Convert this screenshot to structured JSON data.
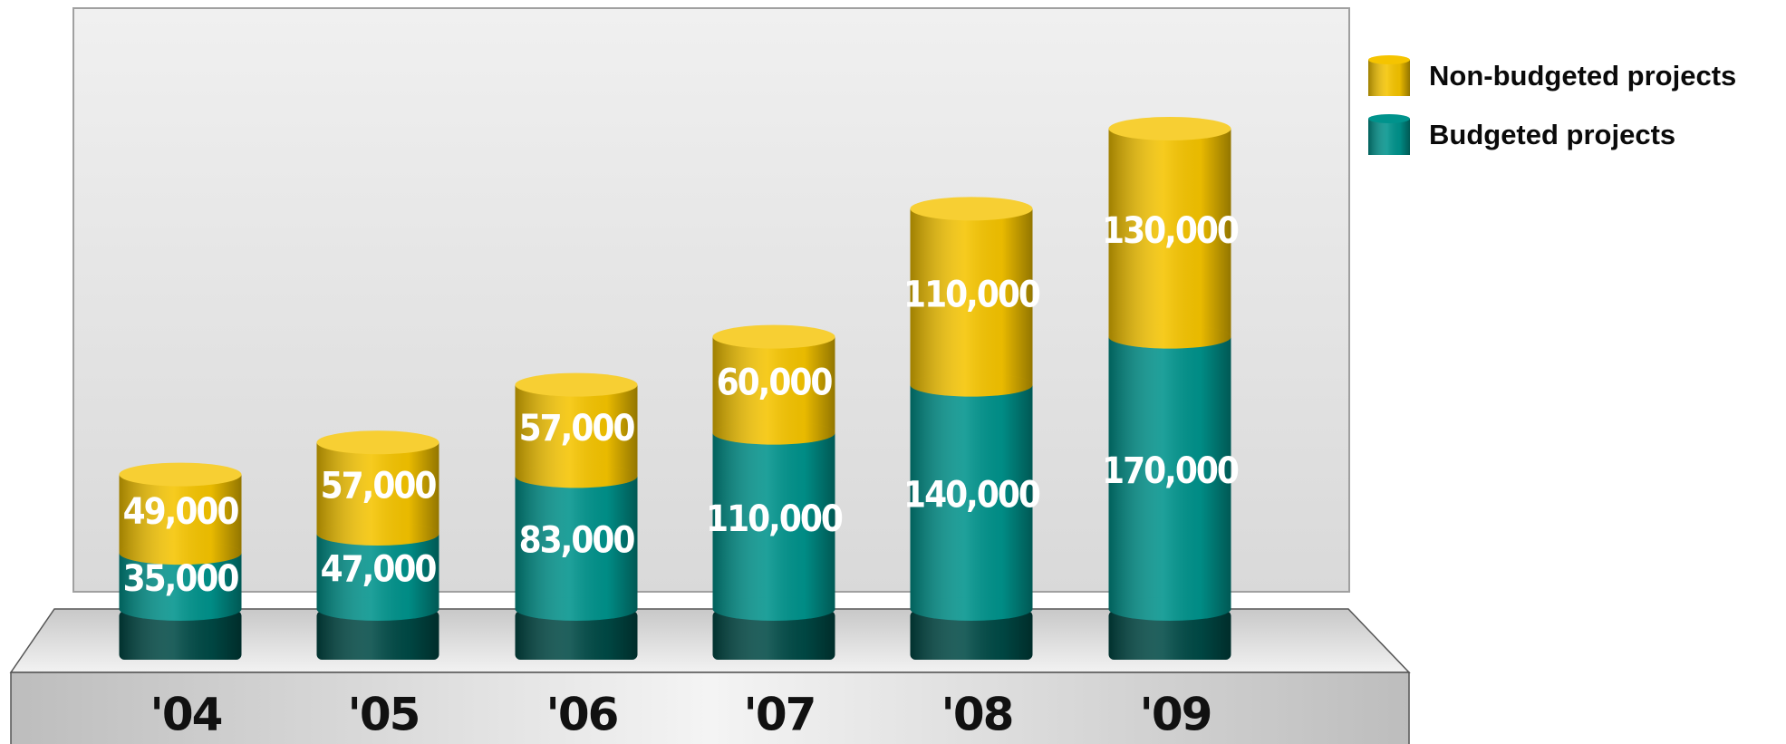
{
  "chart_data": {
    "type": "bar",
    "stacked": true,
    "categories": [
      "'04",
      "'05",
      "'06",
      "'07",
      "'08",
      "'09"
    ],
    "series": [
      {
        "name": "Budgeted projects",
        "color": "#00938c",
        "values": [
          35000,
          47000,
          83000,
          110000,
          140000,
          170000
        ],
        "value_labels": [
          "35,000",
          "47,000",
          "83,000",
          "110,000",
          "140,000",
          "170,000"
        ]
      },
      {
        "name": "Non-budgeted projects",
        "color": "#f5c400",
        "values": [
          49000,
          57000,
          57000,
          60000,
          110000,
          130000
        ],
        "value_labels": [
          "49,000",
          "57,000",
          "57,000",
          "60,000",
          "110,000",
          "130,000"
        ]
      }
    ]
  }
}
